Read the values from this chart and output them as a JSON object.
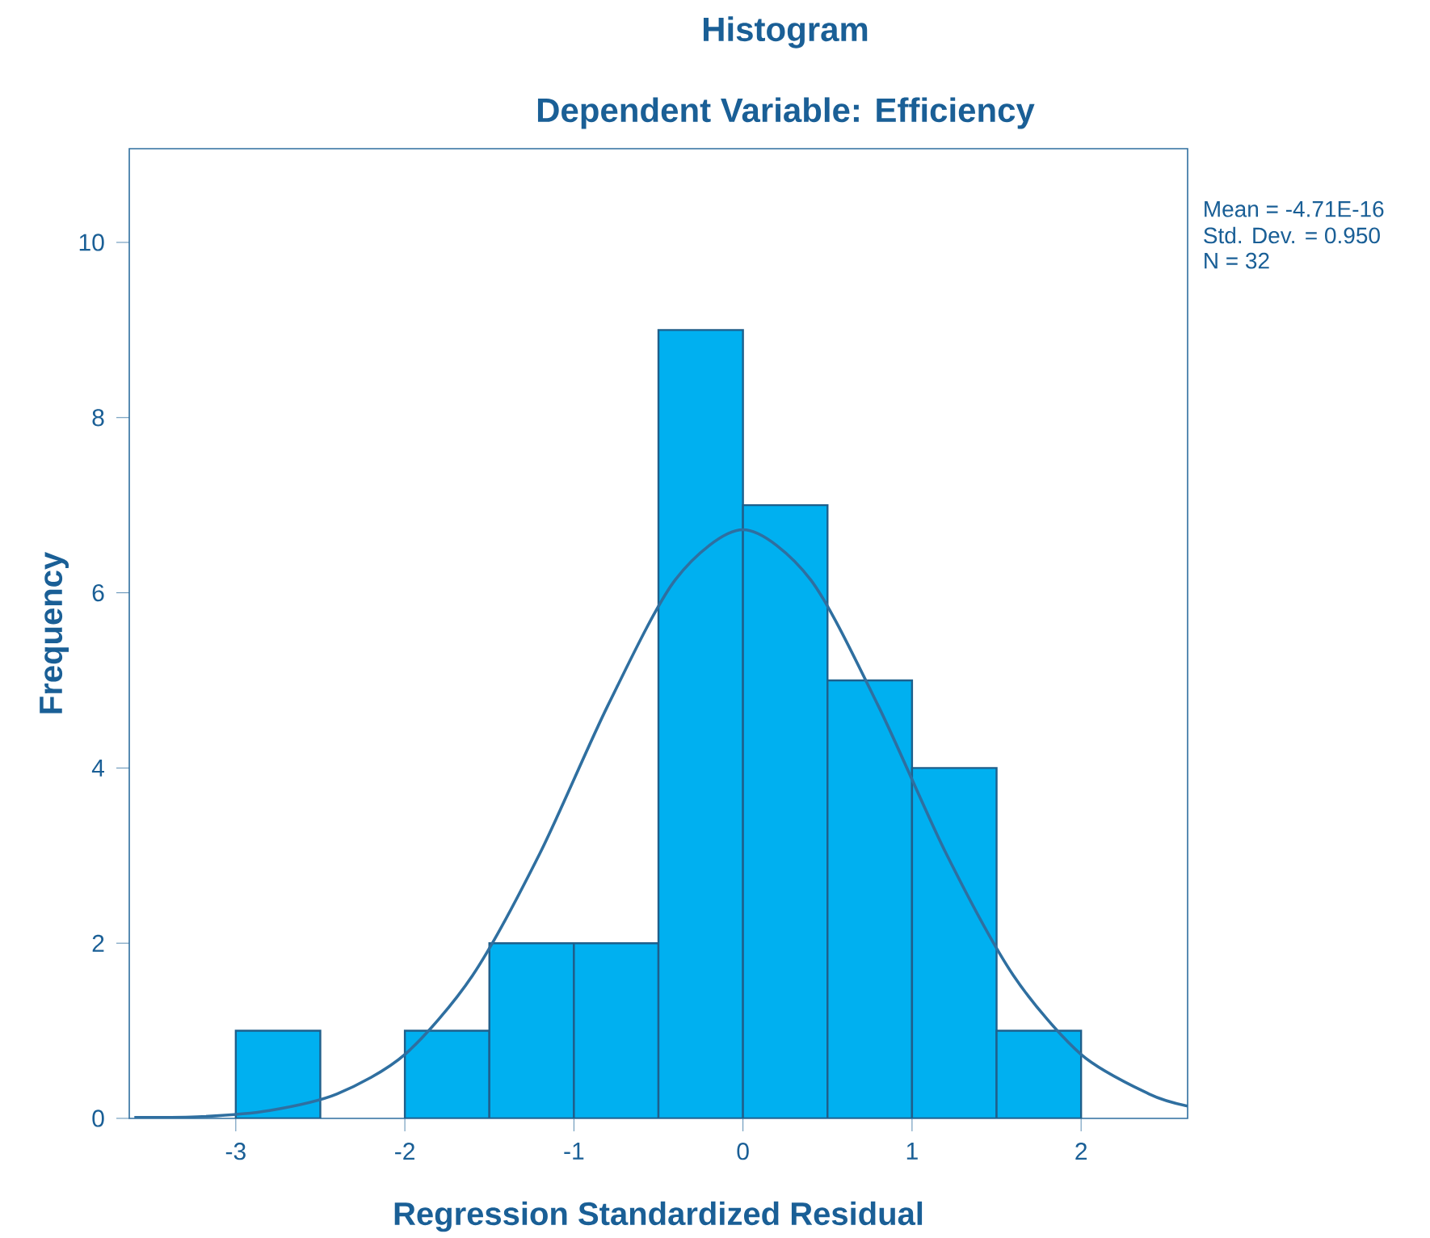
{
  "chart_data": {
    "type": "histogram",
    "title": "Histogram",
    "subtitle": "Dependent Variable: Efficiency",
    "xlabel": "Regression Standardized Residual",
    "ylabel": "Frequency",
    "bins": [
      -3,
      -2.5,
      -2,
      -1.5,
      -1,
      -0.5,
      0,
      0.5,
      1,
      1.5,
      2
    ],
    "series": [
      {
        "color": "#00b0f0",
        "values": [
          1,
          0,
          1,
          2,
          2,
          9,
          7,
          5,
          4,
          1
        ]
      },
      {
        "type": "line",
        "color": "#2f6fa0",
        "x": [
          -3.6,
          -3.2,
          -2.8,
          -2.4,
          -2.0,
          -1.6,
          -1.2,
          -0.8,
          -0.4,
          0,
          0.4,
          0.8,
          1.2,
          1.6,
          2.0,
          2.4,
          2.63
        ],
        "values": [
          0.01,
          0.02,
          0.09,
          0.28,
          0.73,
          1.63,
          3.03,
          4.71,
          6.15,
          6.72,
          6.15,
          4.71,
          3.03,
          1.63,
          0.73,
          0.28,
          0.14
        ]
      }
    ],
    "xlim": [
      -3.63,
      2.63
    ],
    "ylim": [
      0,
      11.07
    ],
    "xticks": [
      -3,
      -2,
      -1,
      0,
      1,
      2
    ],
    "yticks": [
      0,
      2,
      4,
      6,
      8,
      10
    ],
    "grid": false,
    "annotations": [
      "Mean = -4.71E-16",
      "Std. Dev. = 0.950",
      "N = 32"
    ]
  }
}
